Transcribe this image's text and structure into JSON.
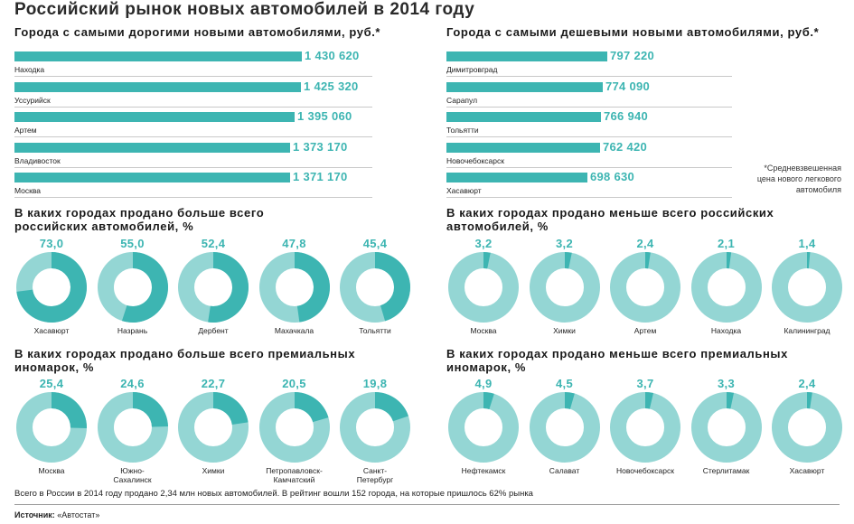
{
  "title": "Российский рынок новых автомобилей в 2014 году",
  "colors": {
    "accent": "#3db5b2",
    "light": "#94d6d4"
  },
  "expensive": {
    "title": "Города с самыми дорогими новыми автомобилями, руб.*",
    "items": [
      {
        "city": "Находка",
        "value": 1430620,
        "label": "1 430 620"
      },
      {
        "city": "Уссурийск",
        "value": 1425320,
        "label": "1 425 320"
      },
      {
        "city": "Артем",
        "value": 1395060,
        "label": "1 395 060"
      },
      {
        "city": "Владивосток",
        "value": 1373170,
        "label": "1 373 170"
      },
      {
        "city": "Москва",
        "value": 1371170,
        "label": "1 371 170"
      }
    ]
  },
  "cheap": {
    "title": "Города с самыми дешевыми новыми автомобилями, руб.*",
    "items": [
      {
        "city": "Димитровград",
        "value": 797220,
        "label": "797 220"
      },
      {
        "city": "Сарапул",
        "value": 774090,
        "label": "774 090"
      },
      {
        "city": "Тольятти",
        "value": 766940,
        "label": "766 940"
      },
      {
        "city": "Новочебоксарск",
        "value": 762420,
        "label": "762 420"
      },
      {
        "city": "Хасавюрт",
        "value": 698630,
        "label": "698 630"
      }
    ]
  },
  "footnote": [
    "*Средневзвешенная",
    "цена нового легкового",
    "автомобиля"
  ],
  "russian_most": {
    "title": [
      "В каких городах продано больше всего",
      "российских автомобилей, %"
    ],
    "items": [
      {
        "city": [
          "Хасавюрт"
        ],
        "value": 73.0,
        "label": "73,0"
      },
      {
        "city": [
          "Назрань"
        ],
        "value": 55.0,
        "label": "55,0"
      },
      {
        "city": [
          "Дербент"
        ],
        "value": 52.4,
        "label": "52,4"
      },
      {
        "city": [
          "Махачкала"
        ],
        "value": 47.8,
        "label": "47,8"
      },
      {
        "city": [
          "Тольятти"
        ],
        "value": 45.4,
        "label": "45,4"
      }
    ]
  },
  "russian_least": {
    "title": [
      "В каких городах продано меньше всего российских",
      "автомобилей, %"
    ],
    "items": [
      {
        "city": [
          "Москва"
        ],
        "value": 3.2,
        "label": "3,2"
      },
      {
        "city": [
          "Химки"
        ],
        "value": 3.2,
        "label": "3,2"
      },
      {
        "city": [
          "Артем"
        ],
        "value": 2.4,
        "label": "2,4"
      },
      {
        "city": [
          "Находка"
        ],
        "value": 2.1,
        "label": "2,1"
      },
      {
        "city": [
          "Калининград"
        ],
        "value": 1.4,
        "label": "1,4"
      }
    ]
  },
  "premium_most": {
    "title": [
      "В каких городах продано больше всего премиальных",
      "иномарок, %"
    ],
    "items": [
      {
        "city": [
          "Москва"
        ],
        "value": 25.4,
        "label": "25,4"
      },
      {
        "city": [
          "Южно-",
          "Сахалинск"
        ],
        "value": 24.6,
        "label": "24,6"
      },
      {
        "city": [
          "Химки"
        ],
        "value": 22.7,
        "label": "22,7"
      },
      {
        "city": [
          "Петропавловск-",
          "Камчатский"
        ],
        "value": 20.5,
        "label": "20,5"
      },
      {
        "city": [
          "Санкт-",
          "Петербург"
        ],
        "value": 19.8,
        "label": "19,8"
      }
    ]
  },
  "premium_least": {
    "title": [
      "В каких городах продано меньше всего премиальных",
      "иномарок, %"
    ],
    "items": [
      {
        "city": [
          "Нефтекамск"
        ],
        "value": 4.9,
        "label": "4,9"
      },
      {
        "city": [
          "Салават"
        ],
        "value": 4.5,
        "label": "4,5"
      },
      {
        "city": [
          "Новочебоксарск"
        ],
        "value": 3.7,
        "label": "3,7"
      },
      {
        "city": [
          "Стерлитамак"
        ],
        "value": 3.3,
        "label": "3,3"
      },
      {
        "city": [
          "Хасавюрт"
        ],
        "value": 2.4,
        "label": "2,4"
      }
    ]
  },
  "total_note": "Всего в России в 2014 году продано 2,34 млн новых автомобилей. В рейтинг вошли 152 города, на которые пришлось 62% рынка",
  "source": {
    "label": "Источник:",
    "value": "«Автостат»"
  },
  "chart_data": [
    {
      "type": "bar",
      "title": "Города с самыми дорогими новыми автомобилями, руб.*",
      "categories": [
        "Находка",
        "Уссурийск",
        "Артем",
        "Владивосток",
        "Москва"
      ],
      "values": [
        1430620,
        1425320,
        1395060,
        1373170,
        1371170
      ]
    },
    {
      "type": "bar",
      "title": "Города с самыми дешевыми новыми автомобилями, руб.*",
      "categories": [
        "Димитровград",
        "Сарапул",
        "Тольятти",
        "Новочебоксарск",
        "Хасавюрт"
      ],
      "values": [
        797220,
        774090,
        766940,
        762420,
        698630
      ]
    },
    {
      "type": "pie",
      "title": "В каких городах продано больше всего российских автомобилей, %",
      "categories": [
        "Хасавюрт",
        "Назрань",
        "Дербент",
        "Махачкала",
        "Тольятти"
      ],
      "values": [
        73.0,
        55.0,
        52.4,
        47.8,
        45.4
      ]
    },
    {
      "type": "pie",
      "title": "В каких городах продано меньше всего российских автомобилей, %",
      "categories": [
        "Москва",
        "Химки",
        "Артем",
        "Находка",
        "Калининград"
      ],
      "values": [
        3.2,
        3.2,
        2.4,
        2.1,
        1.4
      ]
    },
    {
      "type": "pie",
      "title": "В каких городах продано больше всего премиальных иномарок, %",
      "categories": [
        "Москва",
        "Южно-Сахалинск",
        "Химки",
        "Петропавловск-Камчатский",
        "Санкт-Петербург"
      ],
      "values": [
        25.4,
        24.6,
        22.7,
        20.5,
        19.8
      ]
    },
    {
      "type": "pie",
      "title": "В каких городах продано меньше всего премиальных иномарок, %",
      "categories": [
        "Нефтекамск",
        "Салават",
        "Новочебоксарск",
        "Стерлитамак",
        "Хасавюрт"
      ],
      "values": [
        4.9,
        4.5,
        3.7,
        3.3,
        2.4
      ]
    }
  ]
}
